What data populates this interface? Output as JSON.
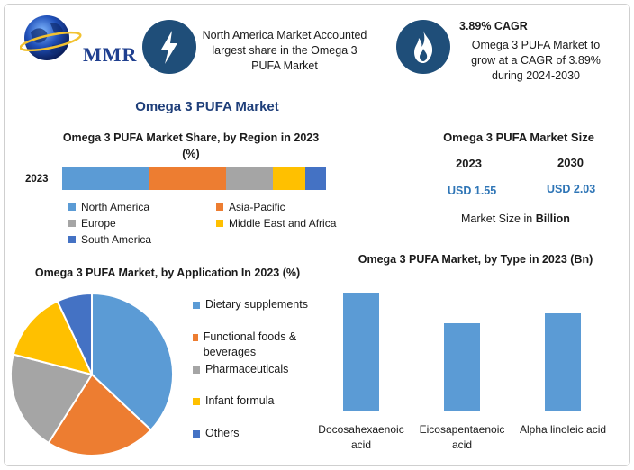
{
  "header": {
    "logo_text": "MMR",
    "box1_text": "North America Market Accounted largest share in the Omega 3 PUFA Market",
    "cagr_title": "3.89% CAGR",
    "cagr_text": "Omega 3 PUFA Market to grow at a CAGR of 3.89% during 2024-2030",
    "icons": [
      "globe-logo-icon",
      "lightning-icon",
      "flame-icon"
    ]
  },
  "main_title": "Omega 3 PUFA Market",
  "market_size": {
    "title": "Omega 3 PUFA Market Size",
    "year1": "2023",
    "year2": "2030",
    "value1": "USD 1.55",
    "value2": "USD 2.03",
    "unit_prefix": "Market Size in",
    "unit_bold": "Billion"
  },
  "chart_data": [
    {
      "type": "bar",
      "orientation": "horizontal-stacked",
      "title": "Omega 3 PUFA Market Share, by Region in 2023 (%)",
      "categories": [
        "2023"
      ],
      "series": [
        {
          "name": "North America",
          "values": [
            33
          ],
          "color": "#5b9bd5"
        },
        {
          "name": "Asia-Pacific",
          "values": [
            29
          ],
          "color": "#ed7d31"
        },
        {
          "name": "Europe",
          "values": [
            18
          ],
          "color": "#a5a5a5"
        },
        {
          "name": "Middle East and Africa",
          "values": [
            12
          ],
          "color": "#ffc000"
        },
        {
          "name": "South America",
          "values": [
            8
          ],
          "color": "#4472c4"
        }
      ],
      "legend": "bottom"
    },
    {
      "type": "pie",
      "title": "Omega 3 PUFA Market, by Application In 2023 (%)",
      "labels": [
        "Dietary supplements",
        "Functional foods & beverages",
        "Pharmaceuticals",
        "Infant formula",
        "Others"
      ],
      "values": [
        37,
        22,
        20,
        14,
        7
      ],
      "colors": [
        "#5b9bd5",
        "#ed7d31",
        "#a5a5a5",
        "#ffc000",
        "#4472c4"
      ],
      "legend": "right"
    },
    {
      "type": "bar",
      "title": "Omega 3 PUFA Market, by Type in 2023 (Bn)",
      "categories": [
        "Docosahexaenoic acid",
        "Eicosapentaenoic acid",
        "Alpha linoleic acid"
      ],
      "values": [
        0.62,
        0.46,
        0.51
      ],
      "color": "#5b9bd5",
      "ylim": [
        0,
        0.65
      ],
      "grid": false
    }
  ]
}
